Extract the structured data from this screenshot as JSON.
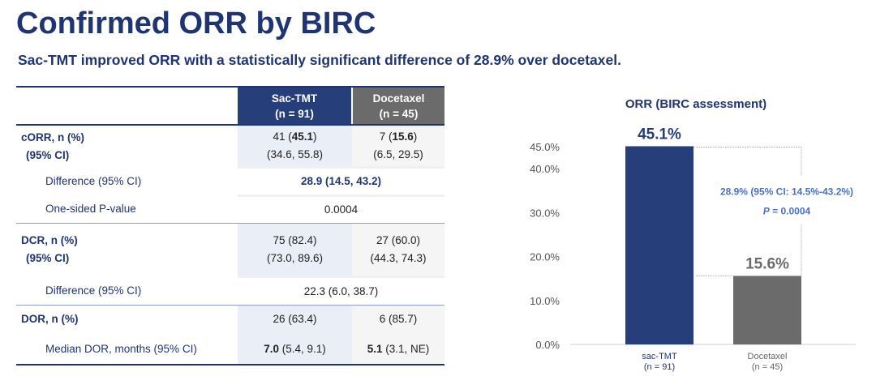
{
  "title": "Confirmed ORR by BIRC",
  "subtitle": "Sac-TMT improved ORR with a statistically significant difference of 28.9% over docetaxel.",
  "table": {
    "headers": [
      {
        "name": "Sac-TMT",
        "n": "(n = 91)"
      },
      {
        "name": "Docetaxel",
        "n": "(n = 45)"
      }
    ],
    "corr": {
      "label": "cORR, n (%)",
      "ci_label": "(95% CI)",
      "sac_n": "41",
      "sac_pct": "45.1",
      "sac_ci": "(34.6, 55.8)",
      "doc_n": "7",
      "doc_pct": "15.6",
      "doc_ci": "(6.5, 29.5)"
    },
    "corr_diff": {
      "label": "Difference (95% CI)",
      "value": "28.9 (14.5, 43.2)"
    },
    "pvalue": {
      "label": "One-sided P-value",
      "value": "0.0004"
    },
    "dcr": {
      "label": "DCR, n (%)",
      "ci_label": "(95% CI)",
      "sac": "75 (82.4)",
      "sac_ci": "(73.0, 89.6)",
      "doc": "27 (60.0)",
      "doc_ci": "(44.3, 74.3)"
    },
    "dcr_diff": {
      "label": "Difference (95% CI)",
      "value": "22.3 (6.0, 38.7)"
    },
    "dor": {
      "label": "DOR, n (%)",
      "sac": "26 (63.4)",
      "doc": "6 (85.7)"
    },
    "median_dor": {
      "label": "Median DOR, months (95% CI)",
      "sac_bold": "7.0",
      "sac_rest": " (5.4, 9.1)",
      "doc_bold": "5.1",
      "doc_rest": " (3.1, NE)"
    }
  },
  "chart_data": {
    "type": "bar",
    "title": "ORR (BIRC assessment)",
    "categories": [
      "sac-TMT",
      "Docetaxel"
    ],
    "category_sublabels": [
      "(n = 91)",
      "(n = 45)"
    ],
    "values": [
      45.1,
      15.6
    ],
    "data_labels": [
      "45.1%",
      "15.6%"
    ],
    "colors": [
      "#263f7a",
      "#6b6b6b"
    ],
    "yticks": [
      "0.0%",
      "10.0%",
      "20.0%",
      "30.0%",
      "40.0%",
      "45.0%"
    ],
    "ytick_values": [
      0,
      10,
      20,
      30,
      40,
      45
    ],
    "ylim": [
      0,
      45
    ],
    "grid": false,
    "annotation": {
      "line1": "28.9% (95% CI: 14.5%-43.2%)",
      "p_label": "P",
      "p_value": " = 0.0004",
      "color": "#4a72c4"
    }
  }
}
